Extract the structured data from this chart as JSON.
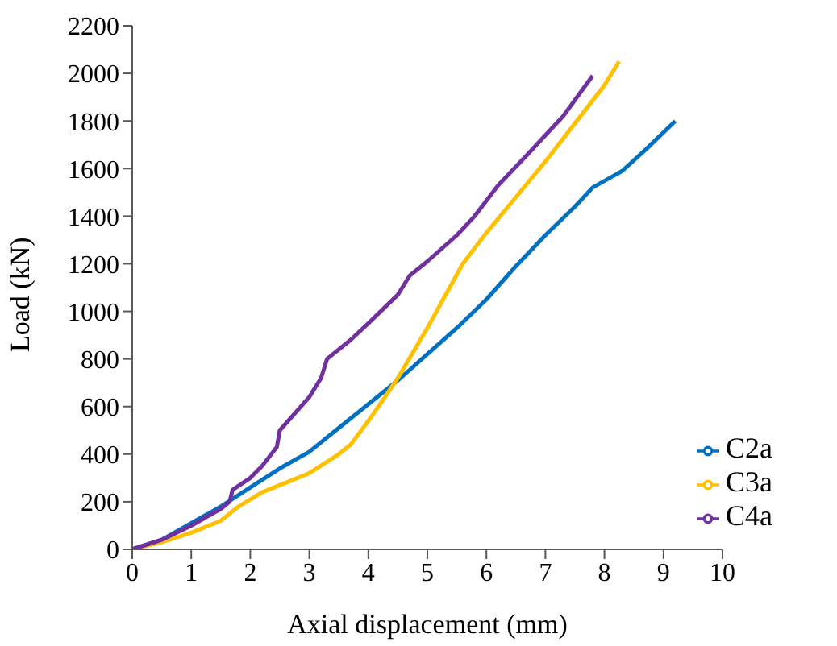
{
  "chart_data": {
    "type": "line",
    "xlabel": "Axial displacement (mm)",
    "ylabel": "Load  (kN)",
    "xlim": [
      0,
      10
    ],
    "xticks": [
      0,
      1,
      2,
      3,
      4,
      5,
      6,
      7,
      8,
      9,
      10
    ],
    "ylim": [
      0,
      2200
    ],
    "yticks": [
      0,
      200,
      400,
      600,
      800,
      1000,
      1200,
      1400,
      1600,
      1800,
      2000,
      2200
    ],
    "grid": false,
    "legend": "bottom right",
    "marker": "none",
    "line_style": "solid",
    "series": [
      {
        "name": "C2a",
        "color": "#0070c0",
        "x": [
          0,
          0.5,
          1,
          1.5,
          2,
          2.5,
          3,
          3.5,
          4,
          4.5,
          5,
          5.5,
          6,
          6.5,
          7,
          7.5,
          7.8,
          8.3,
          8.7,
          9.2
        ],
        "values": [
          0,
          40,
          110,
          180,
          260,
          340,
          410,
          510,
          610,
          710,
          820,
          930,
          1050,
          1190,
          1320,
          1440,
          1520,
          1590,
          1680,
          1800
        ]
      },
      {
        "name": "C3a",
        "color": "#ffc000",
        "x": [
          0,
          0.5,
          1,
          1.5,
          1.8,
          2.2,
          2.7,
          3,
          3.5,
          3.7,
          4,
          4.2,
          4.5,
          5,
          5.4,
          5.6,
          6,
          6.5,
          7,
          7.5,
          8,
          8.25
        ],
        "values": [
          0,
          30,
          70,
          120,
          180,
          240,
          290,
          320,
          400,
          440,
          540,
          610,
          720,
          930,
          1110,
          1200,
          1330,
          1480,
          1630,
          1790,
          1950,
          2050
        ]
      },
      {
        "name": "C4a",
        "color": "#7030a0",
        "x": [
          0,
          0.5,
          1,
          1.5,
          1.65,
          1.7,
          2,
          2.2,
          2.45,
          2.5,
          3,
          3.2,
          3.3,
          3.7,
          4,
          4.5,
          4.7,
          5,
          5.5,
          5.8,
          6.2,
          6.7,
          7.3,
          7.8
        ],
        "values": [
          0,
          40,
          100,
          170,
          200,
          250,
          300,
          350,
          430,
          500,
          640,
          720,
          800,
          880,
          950,
          1070,
          1150,
          1210,
          1320,
          1400,
          1530,
          1660,
          1820,
          1990
        ]
      }
    ]
  }
}
